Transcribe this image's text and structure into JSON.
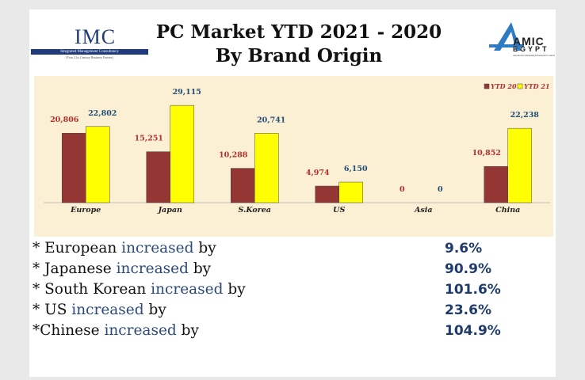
{
  "header": {
    "title_line1": "PC Market YTD 2021 - 2020",
    "title_line2": "By Brand Origin",
    "left_logo": {
      "name": "IMC",
      "tagline": "Integrated Management Consultancy",
      "subtagline": "(Your 21st Century Business Partner)"
    },
    "right_logo": {
      "name": "AMIC",
      "name2": "EGYPT",
      "subtitle": "Automotive Marketing Information Council"
    }
  },
  "chart_data": {
    "type": "bar",
    "categories": [
      "Europe",
      "Japan",
      "S.Korea",
      "US",
      "Asia",
      "China"
    ],
    "series": [
      {
        "name": "YTD 20",
        "values": [
          20806,
          15251,
          10288,
          4974,
          0,
          10852
        ],
        "labels": [
          "20,806",
          "15,251",
          "10,288",
          "4,974",
          "0",
          "10,852"
        ],
        "color": "#943634"
      },
      {
        "name": "YTD 21",
        "values": [
          22802,
          29115,
          20741,
          6150,
          0,
          22238
        ],
        "labels": [
          "22,802",
          "29,115",
          "20,741",
          "6,150",
          "0",
          "22,238"
        ],
        "color": "#ffff00"
      }
    ],
    "ylim": [
      0,
      32000
    ],
    "legend_position": "top-right",
    "grid": false,
    "label_colors": {
      "YTD 20": "#b0312b",
      "YTD 21": "#1f4e79"
    }
  },
  "stats": [
    {
      "prefix": "* European ",
      "keyword": "increased",
      "suffix": " by",
      "value": "9.6%"
    },
    {
      "prefix": "* Japanese ",
      "keyword": "increased",
      "suffix": " by",
      "value": "90.9%"
    },
    {
      "prefix": "* South Korean ",
      "keyword": "increased",
      "suffix": " by",
      "value": "101.6%"
    },
    {
      "prefix": "* US ",
      "keyword": "increased",
      "suffix": " by",
      "value": "23.6%"
    },
    {
      "prefix": "*Chinese ",
      "keyword": "increased",
      "suffix": " by",
      "value": "104.9%"
    }
  ]
}
